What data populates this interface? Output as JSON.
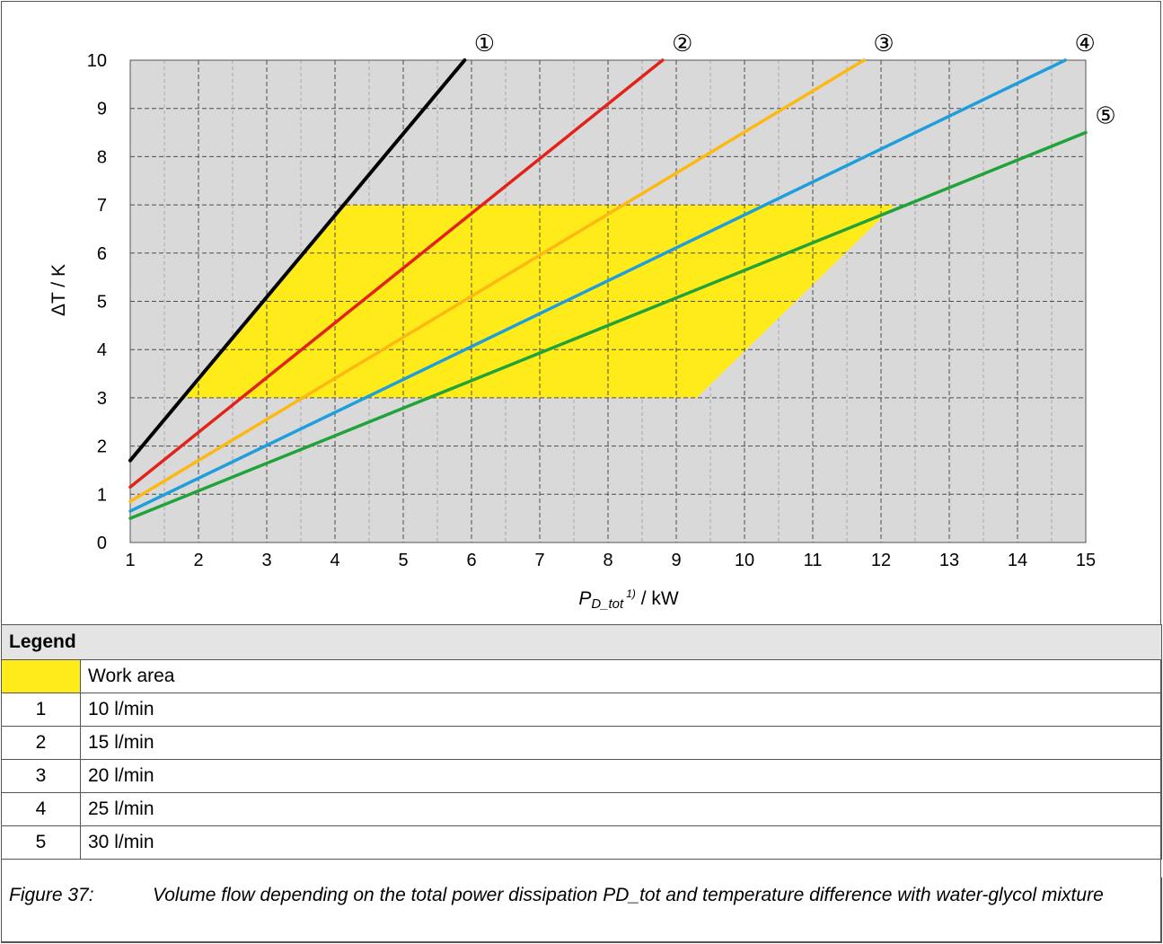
{
  "chart_data": {
    "type": "line",
    "xlabel_main": "P",
    "xlabel_sub": "D_tot",
    "xlabel_sup": "1)",
    "xlabel_unit": " / kW",
    "ylabel": "ΔT / K",
    "xlim": [
      1,
      15
    ],
    "ylim": [
      0,
      10
    ],
    "x_ticks": [
      1,
      2,
      3,
      4,
      5,
      6,
      7,
      8,
      9,
      10,
      11,
      12,
      13,
      14,
      15
    ],
    "y_ticks": [
      0,
      1,
      2,
      3,
      4,
      5,
      6,
      7,
      8,
      9,
      10
    ],
    "grid": true,
    "minor_grid_x": true,
    "background_color": "#d9d9d9",
    "work_area": {
      "color": "#ffeb1a",
      "polygon": [
        [
          1.8,
          3.0
        ],
        [
          4.1,
          7.0
        ],
        [
          12.2,
          7.0
        ],
        [
          9.3,
          3.0
        ]
      ]
    },
    "series": [
      {
        "marker": "①",
        "color": "#000000",
        "points": [
          [
            1,
            1.7
          ],
          [
            5.9,
            10
          ]
        ]
      },
      {
        "marker": "②",
        "color": "#e2231a",
        "points": [
          [
            1,
            1.15
          ],
          [
            8.8,
            10
          ]
        ]
      },
      {
        "marker": "③",
        "color": "#fdb913",
        "points": [
          [
            1,
            0.85
          ],
          [
            11.75,
            10
          ]
        ]
      },
      {
        "marker": "④",
        "color": "#1e9fdc",
        "points": [
          [
            1,
            0.65
          ],
          [
            14.7,
            10
          ]
        ]
      },
      {
        "marker": "⑤",
        "color": "#22a33a",
        "points": [
          [
            1,
            0.5
          ],
          [
            15,
            8.5
          ]
        ]
      }
    ]
  },
  "legend": {
    "title": "Legend",
    "work_area_label": "Work area",
    "work_area_color": "#ffeb1a",
    "rows": [
      {
        "num": "1",
        "label": "10 l/min"
      },
      {
        "num": "2",
        "label": "15 l/min"
      },
      {
        "num": "3",
        "label": "20 l/min"
      },
      {
        "num": "4",
        "label": "25 l/min"
      },
      {
        "num": "5",
        "label": "30 l/min"
      }
    ]
  },
  "caption": {
    "figure_label": "Figure 37:",
    "text": "Volume flow depending on the total power dissipation PD_tot and temperature difference with water-glycol mixture"
  }
}
